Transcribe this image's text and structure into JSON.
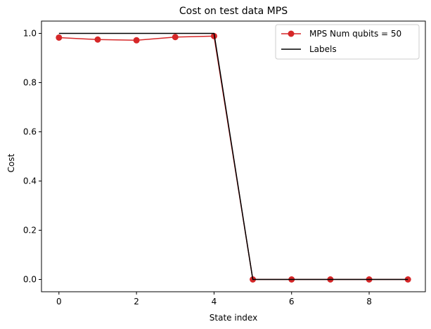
{
  "chart_data": {
    "type": "line",
    "title": "Cost on test data MPS",
    "xlabel": "State index",
    "ylabel": "Cost",
    "xlim": [
      -0.45,
      9.45
    ],
    "ylim": [
      -0.05,
      1.05
    ],
    "xticks": [
      0,
      2,
      4,
      6,
      8
    ],
    "yticks": [
      0.0,
      0.2,
      0.4,
      0.6,
      0.8,
      1.0
    ],
    "xtick_labels": [
      "0",
      "2",
      "4",
      "6",
      "8"
    ],
    "ytick_labels": [
      "0.0",
      "0.2",
      "0.4",
      "0.6",
      "0.8",
      "1.0"
    ],
    "grid": false,
    "legend_position": "top-right",
    "series": [
      {
        "name": "MPS Num qubits = 50",
        "color": "#d62728",
        "marker": "circle",
        "x": [
          0,
          1,
          2,
          3,
          4,
          5,
          6,
          7,
          8,
          9
        ],
        "y": [
          0.983,
          0.975,
          0.972,
          0.985,
          0.989,
          0.0,
          0.0,
          0.0,
          0.0,
          0.0
        ]
      },
      {
        "name": "Labels",
        "color": "#000000",
        "marker": "none",
        "x": [
          0,
          1,
          2,
          3,
          4,
          5,
          6,
          7,
          8,
          9
        ],
        "y": [
          1,
          1,
          1,
          1,
          1,
          0,
          0,
          0,
          0,
          0
        ]
      }
    ]
  }
}
